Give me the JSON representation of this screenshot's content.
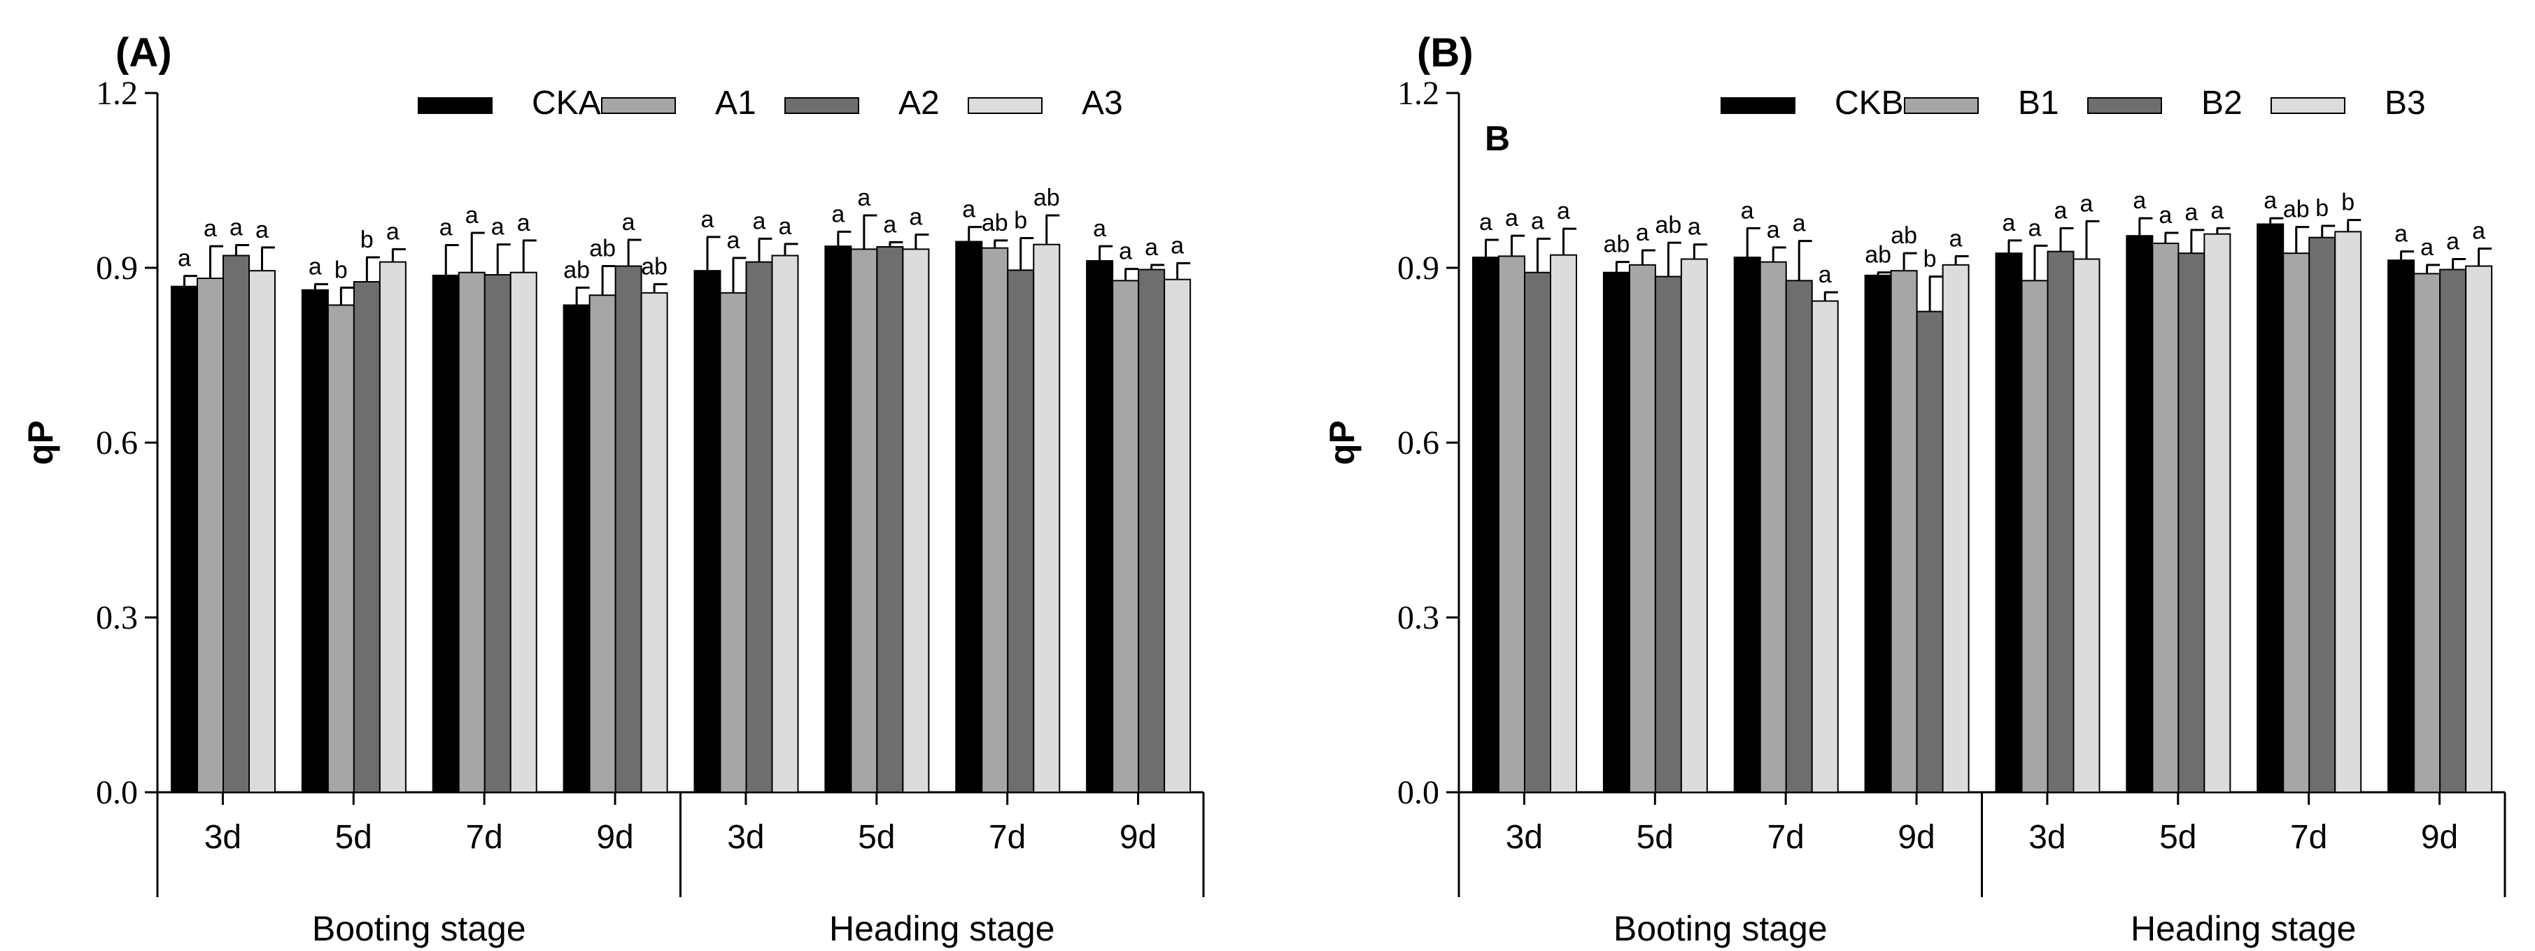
{
  "colors": {
    "bar_fills": [
      "#000000",
      "#a6a6a6",
      "#6e6e6e",
      "#dcdcdc"
    ],
    "axis": "#000000"
  },
  "chart_data": [
    {
      "type": "bar",
      "panel_label": "(A)",
      "corner_label": "",
      "ylabel": "qP",
      "ylim": [
        0,
        1.2
      ],
      "yticks": [
        "0.0",
        "0.3",
        "0.6",
        "0.9",
        "1.2"
      ],
      "grid": false,
      "legend_position": "top-right",
      "categories": [
        "3d",
        "5d",
        "7d",
        "9d",
        "3d",
        "5d",
        "7d",
        "9d"
      ],
      "groups": [
        "Booting stage",
        "Heading stage"
      ],
      "series": [
        {
          "name": "CKA",
          "values": [
            0.868,
            0.862,
            0.887,
            0.836,
            0.895,
            0.937,
            0.945,
            0.912
          ],
          "errors": [
            0.018,
            0.01,
            0.052,
            0.03,
            0.058,
            0.025,
            0.025,
            0.025
          ],
          "letters": [
            "a",
            "a",
            "a",
            "ab",
            "a",
            "a",
            "a",
            "a"
          ]
        },
        {
          "name": "A1",
          "values": [
            0.882,
            0.836,
            0.892,
            0.853,
            0.857,
            0.932,
            0.934,
            0.878
          ],
          "errors": [
            0.055,
            0.03,
            0.068,
            0.05,
            0.06,
            0.058,
            0.013,
            0.02
          ],
          "letters": [
            "a",
            "b",
            "a",
            "ab",
            "a",
            "a",
            "ab",
            "a"
          ]
        },
        {
          "name": "A2",
          "values": [
            0.921,
            0.876,
            0.888,
            0.903,
            0.91,
            0.936,
            0.896,
            0.897
          ],
          "errors": [
            0.018,
            0.042,
            0.052,
            0.045,
            0.04,
            0.008,
            0.055,
            0.008
          ],
          "letters": [
            "a",
            "b",
            "a",
            "a",
            "a",
            "a",
            "b",
            "a"
          ]
        },
        {
          "name": "A3",
          "values": [
            0.895,
            0.91,
            0.892,
            0.857,
            0.921,
            0.932,
            0.94,
            0.88
          ],
          "errors": [
            0.04,
            0.022,
            0.055,
            0.015,
            0.02,
            0.025,
            0.05,
            0.028
          ],
          "letters": [
            "a",
            "a",
            "a",
            "ab",
            "a",
            "a",
            "ab",
            "a"
          ]
        }
      ]
    },
    {
      "type": "bar",
      "panel_label": "(B)",
      "corner_label": "B",
      "ylabel": "qP",
      "ylim": [
        0,
        1.2
      ],
      "yticks": [
        "0.0",
        "0.3",
        "0.6",
        "0.9",
        "1.2"
      ],
      "grid": false,
      "legend_position": "top-right",
      "categories": [
        "3d",
        "5d",
        "7d",
        "9d",
        "3d",
        "5d",
        "7d",
        "9d"
      ],
      "groups": [
        "Booting stage",
        "Heading stage"
      ],
      "series": [
        {
          "name": "CKB",
          "values": [
            0.918,
            0.892,
            0.918,
            0.887,
            0.925,
            0.955,
            0.975,
            0.913
          ],
          "errors": [
            0.03,
            0.018,
            0.05,
            0.005,
            0.022,
            0.03,
            0.01,
            0.015
          ],
          "letters": [
            "a",
            "ab",
            "a",
            "ab",
            "a",
            "a",
            "a",
            "a"
          ]
        },
        {
          "name": "B1",
          "values": [
            0.92,
            0.905,
            0.91,
            0.895,
            0.878,
            0.942,
            0.925,
            0.89
          ],
          "errors": [
            0.035,
            0.025,
            0.025,
            0.03,
            0.06,
            0.018,
            0.045,
            0.015
          ],
          "letters": [
            "a",
            "a",
            "a",
            "ab",
            "a",
            "a",
            "ab",
            "a"
          ]
        },
        {
          "name": "B2",
          "values": [
            0.892,
            0.885,
            0.878,
            0.825,
            0.928,
            0.925,
            0.952,
            0.897
          ],
          "errors": [
            0.058,
            0.058,
            0.068,
            0.06,
            0.04,
            0.04,
            0.02,
            0.018
          ],
          "letters": [
            "a",
            "ab",
            "a",
            "b",
            "a",
            "a",
            "b",
            "a"
          ]
        },
        {
          "name": "B3",
          "values": [
            0.922,
            0.915,
            0.843,
            0.905,
            0.915,
            0.958,
            0.962,
            0.903
          ],
          "errors": [
            0.045,
            0.025,
            0.015,
            0.015,
            0.065,
            0.01,
            0.02,
            0.03
          ],
          "letters": [
            "a",
            "a",
            "a",
            "a",
            "a",
            "a",
            "b",
            "a"
          ]
        }
      ]
    }
  ]
}
